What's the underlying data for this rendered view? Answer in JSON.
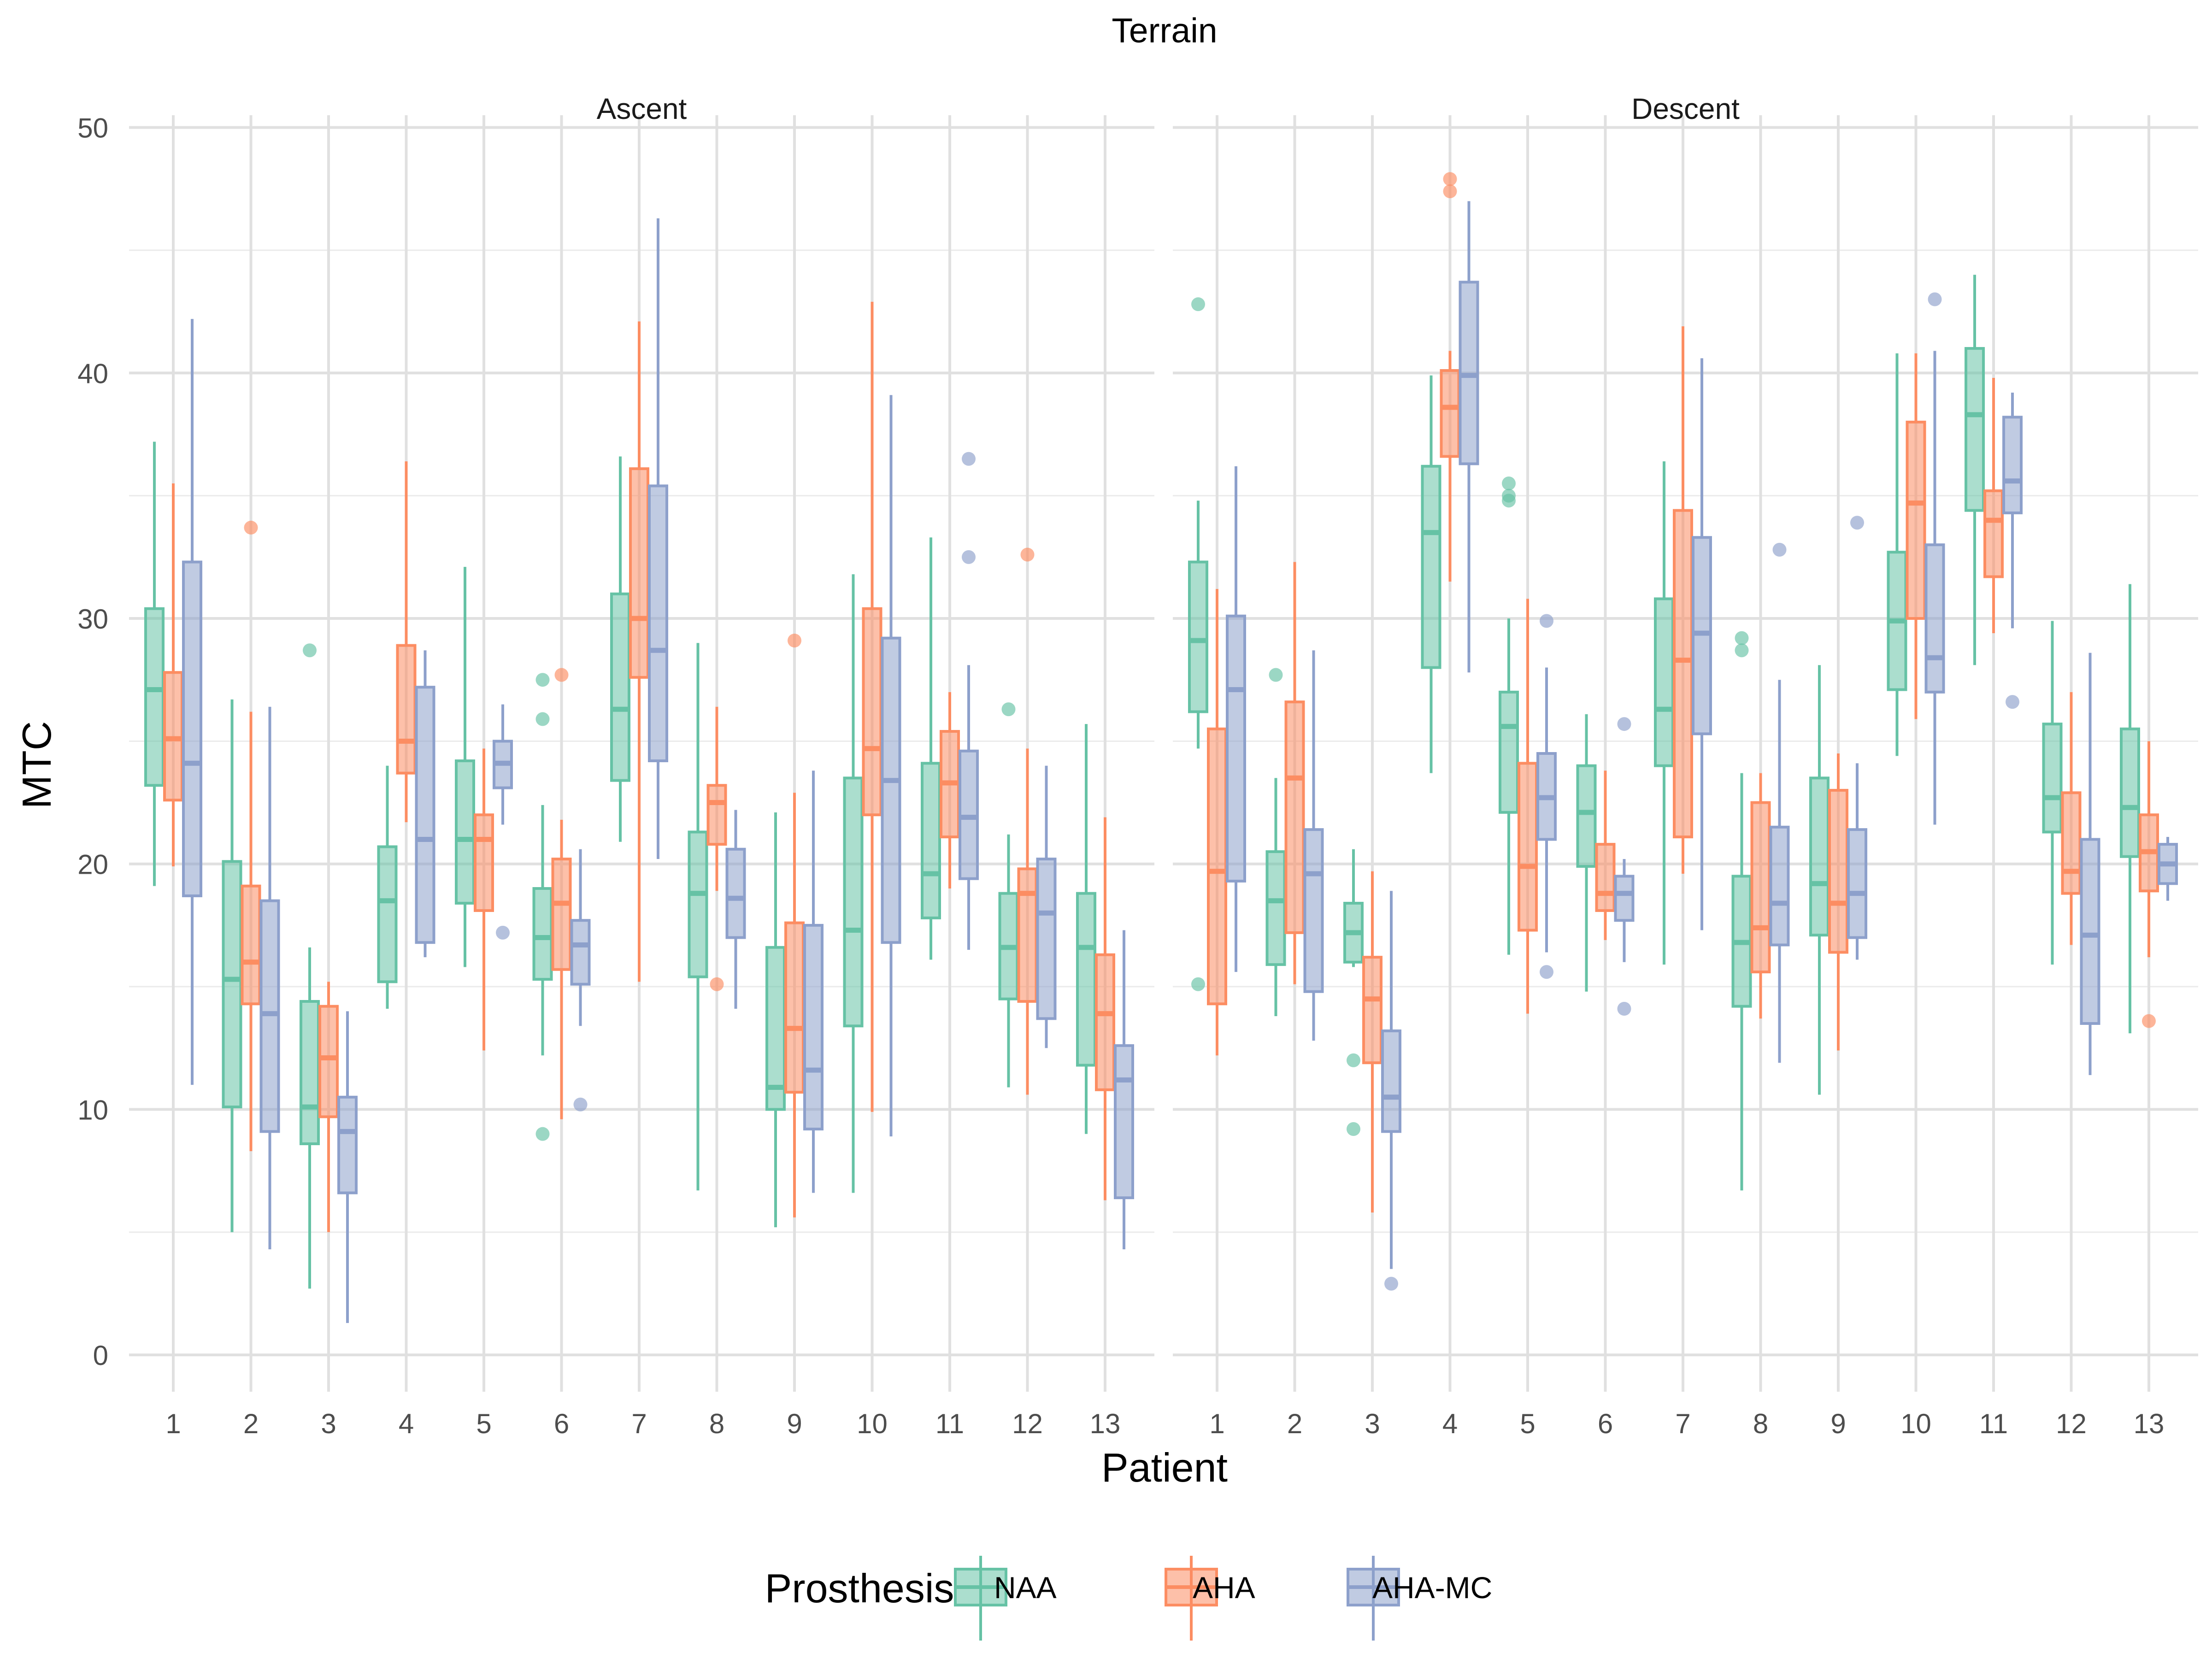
{
  "chart_data": {
    "type": "boxplot",
    "title": "Terrain",
    "xlabel": "Patient",
    "ylabel": "MTC",
    "ylim": [
      -1.5,
      50.5
    ],
    "yticks": [
      0,
      10,
      20,
      30,
      40,
      50
    ],
    "grid": true,
    "legend": {
      "title": "Prosthesis",
      "position": "bottom",
      "entries": [
        "NAA",
        "AHA",
        "AHA-MC"
      ]
    },
    "categories": [
      "1",
      "2",
      "3",
      "4",
      "5",
      "6",
      "7",
      "8",
      "9",
      "10",
      "11",
      "12",
      "13"
    ],
    "series_colors": {
      "NAA": "#66c2a5",
      "AHA": "#fc8d62",
      "AHA-MC": "#8da0cb"
    },
    "panels": [
      {
        "label": "Ascent",
        "series": [
          {
            "name": "NAA",
            "boxes": [
              {
                "min": 19.1,
                "q1": 23.2,
                "median": 27.1,
                "q3": 30.4,
                "max": 37.2,
                "outliers": []
              },
              {
                "min": 5.0,
                "q1": 10.1,
                "median": 15.3,
                "q3": 20.1,
                "max": 26.7,
                "outliers": []
              },
              {
                "min": 2.7,
                "q1": 8.6,
                "median": 10.1,
                "q3": 14.4,
                "max": 16.6,
                "outliers": [
                  28.7
                ]
              },
              {
                "min": 14.1,
                "q1": 15.2,
                "median": 18.5,
                "q3": 20.7,
                "max": 24.0,
                "outliers": []
              },
              {
                "min": 15.8,
                "q1": 18.4,
                "median": 21.0,
                "q3": 24.2,
                "max": 32.1,
                "outliers": []
              },
              {
                "min": 12.2,
                "q1": 15.3,
                "median": 17.0,
                "q3": 19.0,
                "max": 22.4,
                "outliers": [
                  27.5,
                  25.9,
                  9.0
                ]
              },
              {
                "min": 20.9,
                "q1": 23.4,
                "median": 26.3,
                "q3": 31.0,
                "max": 36.6,
                "outliers": []
              },
              {
                "min": 6.7,
                "q1": 15.4,
                "median": 18.8,
                "q3": 21.3,
                "max": 29.0,
                "outliers": []
              },
              {
                "min": 5.2,
                "q1": 10.0,
                "median": 10.9,
                "q3": 16.6,
                "max": 22.1,
                "outliers": []
              },
              {
                "min": 6.6,
                "q1": 13.4,
                "median": 17.3,
                "q3": 23.5,
                "max": 31.8,
                "outliers": []
              },
              {
                "min": 16.1,
                "q1": 17.8,
                "median": 19.6,
                "q3": 24.1,
                "max": 33.3,
                "outliers": []
              },
              {
                "min": 10.9,
                "q1": 14.5,
                "median": 16.6,
                "q3": 18.8,
                "max": 21.2,
                "outliers": [
                  26.3
                ]
              },
              {
                "min": 9.0,
                "q1": 11.8,
                "median": 16.6,
                "q3": 18.8,
                "max": 25.7,
                "outliers": []
              }
            ]
          },
          {
            "name": "AHA",
            "boxes": [
              {
                "min": 19.9,
                "q1": 22.6,
                "median": 25.1,
                "q3": 27.8,
                "max": 35.5,
                "outliers": []
              },
              {
                "min": 8.3,
                "q1": 14.3,
                "median": 16.0,
                "q3": 19.1,
                "max": 26.2,
                "outliers": [
                  33.7
                ]
              },
              {
                "min": 5.0,
                "q1": 9.7,
                "median": 12.1,
                "q3": 14.2,
                "max": 15.2,
                "outliers": []
              },
              {
                "min": 21.7,
                "q1": 23.7,
                "median": 25.0,
                "q3": 28.9,
                "max": 36.4,
                "outliers": []
              },
              {
                "min": 12.4,
                "q1": 18.1,
                "median": 21.0,
                "q3": 22.0,
                "max": 24.7,
                "outliers": []
              },
              {
                "min": 9.6,
                "q1": 15.7,
                "median": 18.4,
                "q3": 20.2,
                "max": 21.8,
                "outliers": [
                  27.7
                ]
              },
              {
                "min": 15.2,
                "q1": 27.6,
                "median": 30.0,
                "q3": 36.1,
                "max": 42.1,
                "outliers": []
              },
              {
                "min": 18.9,
                "q1": 20.8,
                "median": 22.5,
                "q3": 23.2,
                "max": 26.4,
                "outliers": [
                  15.1
                ]
              },
              {
                "min": 5.6,
                "q1": 10.7,
                "median": 13.3,
                "q3": 17.6,
                "max": 22.9,
                "outliers": [
                  29.1
                ]
              },
              {
                "min": 9.9,
                "q1": 22.0,
                "median": 24.7,
                "q3": 30.4,
                "max": 42.9,
                "outliers": []
              },
              {
                "min": 19.0,
                "q1": 21.1,
                "median": 23.3,
                "q3": 25.4,
                "max": 27.0,
                "outliers": []
              },
              {
                "min": 10.6,
                "q1": 14.4,
                "median": 18.8,
                "q3": 19.8,
                "max": 24.7,
                "outliers": [
                  32.6
                ]
              },
              {
                "min": 6.3,
                "q1": 10.8,
                "median": 13.9,
                "q3": 16.3,
                "max": 21.9,
                "outliers": []
              }
            ]
          },
          {
            "name": "AHA-MC",
            "boxes": [
              {
                "min": 11.0,
                "q1": 18.7,
                "median": 24.1,
                "q3": 32.3,
                "max": 42.2,
                "outliers": []
              },
              {
                "min": 4.3,
                "q1": 9.1,
                "median": 13.9,
                "q3": 18.5,
                "max": 26.4,
                "outliers": []
              },
              {
                "min": 1.3,
                "q1": 6.6,
                "median": 9.1,
                "q3": 10.5,
                "max": 14.0,
                "outliers": []
              },
              {
                "min": 16.2,
                "q1": 16.8,
                "median": 21.0,
                "q3": 27.2,
                "max": 28.7,
                "outliers": []
              },
              {
                "min": 21.6,
                "q1": 23.1,
                "median": 24.1,
                "q3": 25.0,
                "max": 26.5,
                "outliers": [
                  17.2
                ]
              },
              {
                "min": 13.4,
                "q1": 15.1,
                "median": 16.7,
                "q3": 17.7,
                "max": 20.6,
                "outliers": [
                  10.2
                ]
              },
              {
                "min": 20.2,
                "q1": 24.2,
                "median": 28.7,
                "q3": 35.4,
                "max": 46.3,
                "outliers": []
              },
              {
                "min": 14.1,
                "q1": 17.0,
                "median": 18.6,
                "q3": 20.6,
                "max": 22.2,
                "outliers": []
              },
              {
                "min": 6.6,
                "q1": 9.2,
                "median": 11.6,
                "q3": 17.5,
                "max": 23.8,
                "outliers": []
              },
              {
                "min": 8.9,
                "q1": 16.8,
                "median": 23.4,
                "q3": 29.2,
                "max": 39.1,
                "outliers": []
              },
              {
                "min": 16.5,
                "q1": 19.4,
                "median": 21.9,
                "q3": 24.6,
                "max": 28.1,
                "outliers": [
                  36.5,
                  32.5
                ]
              },
              {
                "min": 12.5,
                "q1": 13.7,
                "median": 18.0,
                "q3": 20.2,
                "max": 24.0,
                "outliers": []
              },
              {
                "min": 4.3,
                "q1": 6.4,
                "median": 11.2,
                "q3": 12.6,
                "max": 17.3,
                "outliers": []
              }
            ]
          }
        ]
      },
      {
        "label": "Descent",
        "series": [
          {
            "name": "NAA",
            "boxes": [
              {
                "min": 24.7,
                "q1": 26.2,
                "median": 29.1,
                "q3": 32.3,
                "max": 34.8,
                "outliers": [
                  42.8,
                  15.1
                ]
              },
              {
                "min": 13.8,
                "q1": 15.9,
                "median": 18.5,
                "q3": 20.5,
                "max": 23.5,
                "outliers": [
                  27.7
                ]
              },
              {
                "min": 15.8,
                "q1": 16.0,
                "median": 17.2,
                "q3": 18.4,
                "max": 20.6,
                "outliers": [
                  12.0,
                  9.2
                ]
              },
              {
                "min": 23.7,
                "q1": 28.0,
                "median": 33.5,
                "q3": 36.2,
                "max": 39.9,
                "outliers": []
              },
              {
                "min": 16.3,
                "q1": 22.1,
                "median": 25.6,
                "q3": 27.0,
                "max": 30.0,
                "outliers": [
                  35.5,
                  35.0,
                  34.8
                ]
              },
              {
                "min": 14.8,
                "q1": 19.9,
                "median": 22.1,
                "q3": 24.0,
                "max": 26.1,
                "outliers": []
              },
              {
                "min": 15.9,
                "q1": 24.0,
                "median": 26.3,
                "q3": 30.8,
                "max": 36.4,
                "outliers": []
              },
              {
                "min": 6.7,
                "q1": 14.2,
                "median": 16.8,
                "q3": 19.5,
                "max": 23.7,
                "outliers": [
                  29.2,
                  28.7
                ]
              },
              {
                "min": 10.6,
                "q1": 17.1,
                "median": 19.2,
                "q3": 23.5,
                "max": 28.1,
                "outliers": []
              },
              {
                "min": 24.4,
                "q1": 27.1,
                "median": 29.9,
                "q3": 32.7,
                "max": 40.8,
                "outliers": []
              },
              {
                "min": 28.1,
                "q1": 34.4,
                "median": 38.3,
                "q3": 41.0,
                "max": 44.0,
                "outliers": []
              },
              {
                "min": 15.9,
                "q1": 21.3,
                "median": 22.7,
                "q3": 25.7,
                "max": 29.9,
                "outliers": []
              },
              {
                "min": 13.1,
                "q1": 20.3,
                "median": 22.3,
                "q3": 25.5,
                "max": 31.4,
                "outliers": []
              }
            ]
          },
          {
            "name": "AHA",
            "boxes": [
              {
                "min": 12.2,
                "q1": 14.3,
                "median": 19.7,
                "q3": 25.5,
                "max": 31.2,
                "outliers": []
              },
              {
                "min": 15.1,
                "q1": 17.2,
                "median": 23.5,
                "q3": 26.6,
                "max": 32.3,
                "outliers": []
              },
              {
                "min": 5.8,
                "q1": 11.9,
                "median": 14.5,
                "q3": 16.2,
                "max": 19.7,
                "outliers": []
              },
              {
                "min": 31.5,
                "q1": 36.6,
                "median": 38.6,
                "q3": 40.1,
                "max": 40.9,
                "outliers": [
                  47.9,
                  47.4
                ]
              },
              {
                "min": 13.9,
                "q1": 17.3,
                "median": 19.9,
                "q3": 24.1,
                "max": 30.8,
                "outliers": []
              },
              {
                "min": 16.9,
                "q1": 18.1,
                "median": 18.8,
                "q3": 20.8,
                "max": 23.8,
                "outliers": []
              },
              {
                "min": 19.6,
                "q1": 21.1,
                "median": 28.3,
                "q3": 34.4,
                "max": 41.9,
                "outliers": []
              },
              {
                "min": 13.7,
                "q1": 15.6,
                "median": 17.4,
                "q3": 22.5,
                "max": 23.7,
                "outliers": []
              },
              {
                "min": 12.4,
                "q1": 16.4,
                "median": 18.4,
                "q3": 23.0,
                "max": 24.5,
                "outliers": []
              },
              {
                "min": 25.9,
                "q1": 30.0,
                "median": 34.7,
                "q3": 38.0,
                "max": 40.8,
                "outliers": []
              },
              {
                "min": 29.4,
                "q1": 31.7,
                "median": 34.0,
                "q3": 35.2,
                "max": 39.8,
                "outliers": []
              },
              {
                "min": 16.7,
                "q1": 18.8,
                "median": 19.7,
                "q3": 22.9,
                "max": 27.0,
                "outliers": []
              },
              {
                "min": 16.2,
                "q1": 18.9,
                "median": 20.5,
                "q3": 22.0,
                "max": 25.0,
                "outliers": [
                  13.6
                ]
              }
            ]
          },
          {
            "name": "AHA-MC",
            "boxes": [
              {
                "min": 15.6,
                "q1": 19.3,
                "median": 27.1,
                "q3": 30.1,
                "max": 36.2,
                "outliers": []
              },
              {
                "min": 12.8,
                "q1": 14.8,
                "median": 19.6,
                "q3": 21.4,
                "max": 28.7,
                "outliers": []
              },
              {
                "min": 3.5,
                "q1": 9.1,
                "median": 10.5,
                "q3": 13.2,
                "max": 18.9,
                "outliers": [
                  2.9
                ]
              },
              {
                "min": 27.8,
                "q1": 36.3,
                "median": 39.9,
                "q3": 43.7,
                "max": 47.0,
                "outliers": []
              },
              {
                "min": 16.4,
                "q1": 21.0,
                "median": 22.7,
                "q3": 24.5,
                "max": 28.0,
                "outliers": [
                  29.9,
                  15.6
                ]
              },
              {
                "min": 16.0,
                "q1": 17.7,
                "median": 18.8,
                "q3": 19.5,
                "max": 20.2,
                "outliers": [
                  25.7,
                  14.1
                ]
              },
              {
                "min": 17.3,
                "q1": 25.3,
                "median": 29.4,
                "q3": 33.3,
                "max": 40.6,
                "outliers": []
              },
              {
                "min": 11.9,
                "q1": 16.7,
                "median": 18.4,
                "q3": 21.5,
                "max": 27.5,
                "outliers": [
                  32.8
                ]
              },
              {
                "min": 16.1,
                "q1": 17.0,
                "median": 18.8,
                "q3": 21.4,
                "max": 24.1,
                "outliers": [
                  33.9
                ]
              },
              {
                "min": 21.6,
                "q1": 27.0,
                "median": 28.4,
                "q3": 33.0,
                "max": 40.9,
                "outliers": [
                  43.0
                ]
              },
              {
                "min": 29.6,
                "q1": 34.3,
                "median": 35.6,
                "q3": 38.2,
                "max": 39.2,
                "outliers": [
                  26.6
                ]
              },
              {
                "min": 11.4,
                "q1": 13.5,
                "median": 17.1,
                "q3": 21.0,
                "max": 28.6,
                "outliers": []
              },
              {
                "min": 18.5,
                "q1": 19.2,
                "median": 20.0,
                "q3": 20.8,
                "max": 21.1,
                "outliers": []
              }
            ]
          }
        ]
      }
    ]
  }
}
